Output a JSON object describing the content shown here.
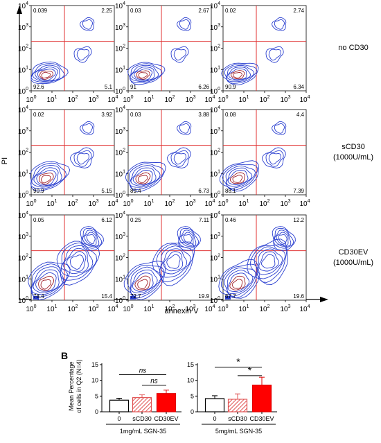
{
  "flow": {
    "x_axis_label": "annexin V",
    "y_axis_label": "PI",
    "tick_base": "10",
    "tick_exponents": [
      "0",
      "1",
      "2",
      "3",
      "4"
    ],
    "rows": [
      {
        "label_lines": [
          "no CD30"
        ],
        "plots": [
          {
            "q1": "0.039",
            "q2": "2.25",
            "q3": "92.6",
            "q4": "5.1",
            "spread": 0
          },
          {
            "q1": "0.03",
            "q2": "2.67",
            "q3": "91",
            "q4": "6.26",
            "spread": 0
          },
          {
            "q1": "0.02",
            "q2": "2.74",
            "q3": "90.9",
            "q4": "6.34",
            "spread": 0
          }
        ]
      },
      {
        "label_lines": [
          "sCD30",
          "(1000U/mL)"
        ],
        "plots": [
          {
            "q1": "0.02",
            "q2": "3.92",
            "q3": "90.9",
            "q4": "5.15",
            "spread": 1
          },
          {
            "q1": "0.03",
            "q2": "3.88",
            "q3": "89.4",
            "q4": "6.73",
            "spread": 1
          },
          {
            "q1": "0.08",
            "q2": "4.4",
            "q3": "88.1",
            "q4": "7.39",
            "spread": 1
          }
        ]
      },
      {
        "label_lines": [
          "CD30EV",
          "(1000U/mL)"
        ],
        "plots": [
          {
            "q1": "0.05",
            "q2": "6.12",
            "q3": "78.4",
            "q4": "15.4",
            "spread": 2
          },
          {
            "q1": "0.25",
            "q2": "7.11",
            "q3": "72.7",
            "q4": "19.9",
            "spread": 2
          },
          {
            "q1": "0.46",
            "q2": "12.2",
            "q3": "67.7",
            "q4": "19.6",
            "spread": 2
          }
        ]
      }
    ],
    "gate_color": "#e03030",
    "contour_color": "#2a3fd0",
    "contour_dark": "#a0202a"
  },
  "bars": {
    "panel_letter": "B",
    "ylabel_lines": [
      "Mean Percentage",
      "of cells in Q2 (N=4)"
    ],
    "yticks": [
      "0",
      "5",
      "10",
      "15"
    ],
    "ylim": [
      0,
      15
    ],
    "categories": [
      "0",
      "sCD30",
      "CD30EV"
    ],
    "fill_colors": [
      "#ffffff",
      "hatched",
      "#ff0000"
    ],
    "groups": [
      {
        "label": "1mg/mL SGN-35",
        "values": [
          3.7,
          4.5,
          5.8
        ],
        "errors": [
          0.6,
          0.9,
          1.1
        ],
        "sig": [
          {
            "text": "ns",
            "from": 0,
            "to": 2,
            "y": 11.8
          },
          {
            "text": "ns",
            "from": 1,
            "to": 2,
            "y": 8.5
          }
        ]
      },
      {
        "label": "5mg/mL SGN-35",
        "values": [
          4.2,
          4.0,
          8.5
        ],
        "errors": [
          0.9,
          1.7,
          2.5
        ],
        "sig": [
          {
            "text": "*",
            "from": 0,
            "to": 2,
            "y": 14.2
          },
          {
            "text": "*",
            "from": 1,
            "to": 2,
            "y": 11.5
          }
        ]
      }
    ]
  }
}
